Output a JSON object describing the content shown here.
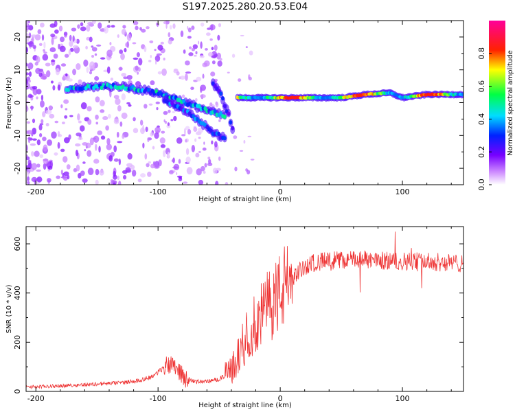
{
  "title": "S197.2025.280.20.53.E04",
  "colors": {
    "line": "#ee3333",
    "frame": "#000000",
    "background": "#ffffff"
  },
  "chart_data": [
    {
      "type": "heatmap",
      "xlabel": "Height of straight line (km)",
      "ylabel": "Frequency (Hz)",
      "xlim": [
        -208,
        150
      ],
      "ylim": [
        -25,
        25
      ],
      "xticks": [
        -200,
        -100,
        0,
        100
      ],
      "xtick_labels": [
        "-200",
        "-100",
        "0",
        "100"
      ],
      "yticks": [
        20,
        10,
        0,
        -10,
        -20
      ],
      "ytick_labels": [
        "20",
        "10",
        "0",
        "-10",
        "-20"
      ],
      "colorbar": {
        "label": "Normalized spectral amplitude",
        "range": [
          0,
          1
        ],
        "ticks": [
          0.0,
          0.2,
          0.4,
          0.6,
          0.8
        ],
        "tick_labels": [
          "0.0",
          "0.2",
          "0.4",
          "0.6",
          "0.8"
        ],
        "colormap": [
          "#ffffff",
          "#aa00ff",
          "#0000ff",
          "#00ffff",
          "#00ff00",
          "#ffff00",
          "#ff0000",
          "#ff00aa"
        ]
      },
      "ridges": [
        {
          "name": "main band",
          "x": [
            -175,
            -150,
            -130,
            -115,
            -100,
            -85,
            -70,
            -55,
            -45
          ],
          "freq": [
            4,
            5,
            5,
            4,
            3,
            1,
            -1,
            -3,
            -4
          ],
          "amplitude": 0.45
        },
        {
          "name": "descending branch 1",
          "x": [
            -95,
            -85,
            -75,
            -65,
            -55,
            -45
          ],
          "freq": [
            1,
            -1,
            -3,
            -6,
            -9,
            -11
          ],
          "amplitude": 0.35
        },
        {
          "name": "descending branch 2",
          "x": [
            -55,
            -48,
            -42,
            -38
          ],
          "freq": [
            6,
            2,
            -4,
            -9
          ],
          "amplitude": 0.3
        },
        {
          "name": "stable band",
          "x": [
            -35,
            -10,
            10,
            30,
            50,
            70,
            90,
            100,
            120,
            150
          ],
          "freq": [
            1.5,
            1.5,
            1.5,
            1.5,
            1.5,
            2.5,
            3,
            1.5,
            2.5,
            2.5
          ],
          "amplitude": 0.85
        }
      ]
    },
    {
      "type": "line",
      "xlabel": "Height of straight line (km)",
      "ylabel": "SNR (10 * v/v)",
      "xlim": [
        -208,
        150
      ],
      "ylim": [
        0,
        670
      ],
      "xticks": [
        -200,
        -100,
        0,
        100
      ],
      "xtick_labels": [
        "-200",
        "-100",
        "0",
        "100"
      ],
      "yticks": [
        0,
        200,
        400,
        600
      ],
      "ytick_labels": [
        "0",
        "200",
        "400",
        "600"
      ],
      "series": [
        {
          "name": "SNR",
          "x": [
            -208,
            -190,
            -170,
            -150,
            -130,
            -115,
            -105,
            -98,
            -92,
            -88,
            -84,
            -80,
            -75,
            -70,
            -60,
            -50,
            -42,
            -36,
            -30,
            -24,
            -18,
            -12,
            -6,
            0,
            6,
            12,
            18,
            25,
            35,
            50,
            70,
            90,
            110,
            130,
            150
          ],
          "values": [
            18,
            20,
            25,
            30,
            35,
            45,
            60,
            85,
            110,
            120,
            95,
            60,
            50,
            40,
            40,
            50,
            75,
            120,
            200,
            250,
            290,
            330,
            370,
            400,
            440,
            470,
            500,
            520,
            530,
            535,
            535,
            530,
            530,
            525,
            520
          ]
        }
      ]
    }
  ]
}
